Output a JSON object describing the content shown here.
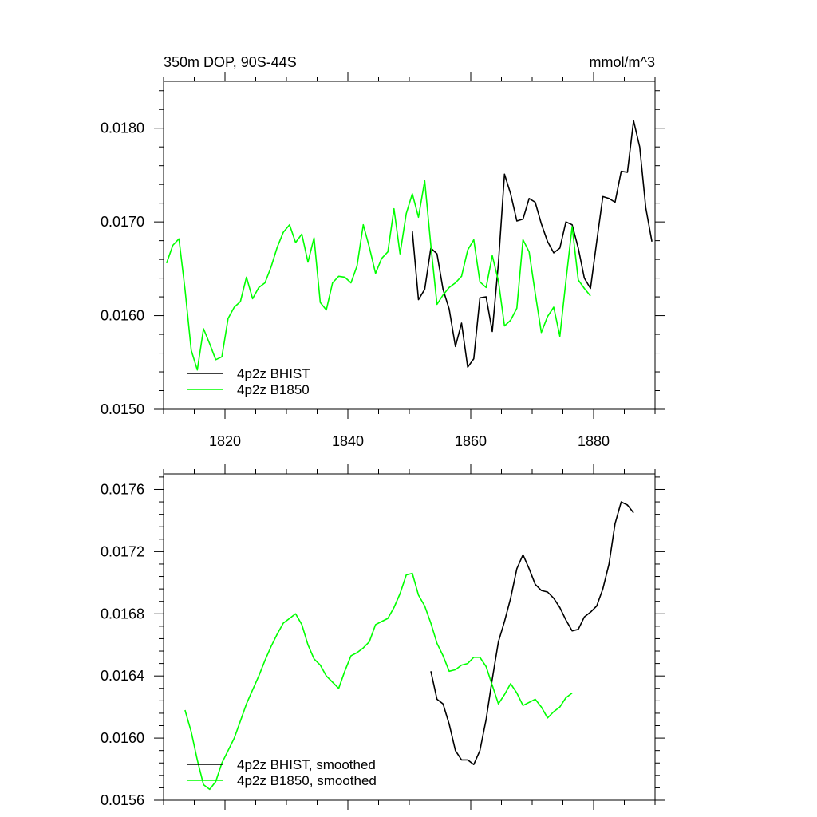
{
  "figure": {
    "title_left": "350m DOP, 90S-44S",
    "title_right": "mmol/m^3"
  },
  "colors": {
    "bhist": "#000000",
    "b1850": "#00ff00"
  },
  "chart_data": [
    {
      "type": "line",
      "title": "350m DOP, 90S-44S",
      "units": "mmol/m^3",
      "xlim": [
        1810,
        1890
      ],
      "ylim": [
        0.015,
        0.0185
      ],
      "xticks": [
        1820,
        1840,
        1860,
        1880
      ],
      "xtick_labels": [
        "1820",
        "1840",
        "1860",
        "1880"
      ],
      "yticks": [
        0.015,
        0.016,
        0.017,
        0.018
      ],
      "ytick_labels": [
        "0.0150",
        "0.0160",
        "0.0170",
        "0.0180"
      ],
      "grid": false,
      "legend_position": "bottom-left",
      "series": [
        {
          "name": "4p2z BHIST",
          "color": "#000000",
          "x": [
            1850.5,
            1851.5,
            1852.5,
            1853.5,
            1854.5,
            1855.5,
            1856.5,
            1857.5,
            1858.5,
            1859.5,
            1860.5,
            1861.5,
            1862.5,
            1863.5,
            1864.5,
            1865.5,
            1866.5,
            1867.5,
            1868.5,
            1869.5,
            1870.5,
            1871.5,
            1872.5,
            1873.5,
            1874.5,
            1875.5,
            1876.5,
            1877.5,
            1878.5,
            1879.5,
            1880.5,
            1881.5,
            1882.5,
            1883.5,
            1884.5,
            1885.5,
            1886.5,
            1887.5,
            1888.5,
            1889.5
          ],
          "y": [
            0.0169,
            0.01617,
            0.01628,
            0.01672,
            0.01666,
            0.01628,
            0.01607,
            0.01567,
            0.01592,
            0.01545,
            0.01554,
            0.01619,
            0.0162,
            0.01583,
            0.01656,
            0.01751,
            0.0173,
            0.01701,
            0.01703,
            0.01725,
            0.01721,
            0.01698,
            0.01679,
            0.01667,
            0.01672,
            0.017,
            0.01697,
            0.01672,
            0.0164,
            0.01629,
            0.01679,
            0.01727,
            0.01725,
            0.01721,
            0.01754,
            0.01753,
            0.01808,
            0.0178,
            0.01715,
            0.01679
          ]
        },
        {
          "name": "4p2z B1850",
          "color": "#00ff00",
          "x": [
            1810.5,
            1811.5,
            1812.5,
            1813.5,
            1814.5,
            1815.5,
            1816.5,
            1817.5,
            1818.5,
            1819.5,
            1820.5,
            1821.5,
            1822.5,
            1823.5,
            1824.5,
            1825.5,
            1826.5,
            1827.5,
            1828.5,
            1829.5,
            1830.5,
            1831.5,
            1832.5,
            1833.5,
            1834.5,
            1835.5,
            1836.5,
            1837.5,
            1838.5,
            1839.5,
            1840.5,
            1841.5,
            1842.5,
            1843.5,
            1844.5,
            1845.5,
            1846.5,
            1847.5,
            1848.5,
            1849.5,
            1850.5,
            1851.5,
            1852.5,
            1853.5,
            1854.5,
            1855.5,
            1856.5,
            1857.5,
            1858.5,
            1859.5,
            1860.5,
            1861.5,
            1862.5,
            1863.5,
            1864.5,
            1865.5,
            1866.5,
            1867.5,
            1868.5,
            1869.5,
            1870.5,
            1871.5,
            1872.5,
            1873.5,
            1874.5,
            1875.5,
            1876.5,
            1877.5,
            1878.5,
            1879.5
          ],
          "y": [
            0.01656,
            0.01675,
            0.01682,
            0.01628,
            0.01563,
            0.01542,
            0.01586,
            0.0157,
            0.01553,
            0.01556,
            0.01597,
            0.01609,
            0.01615,
            0.01641,
            0.01618,
            0.0163,
            0.01635,
            0.01652,
            0.01673,
            0.01689,
            0.01697,
            0.01678,
            0.01687,
            0.01657,
            0.01683,
            0.01614,
            0.01606,
            0.01635,
            0.01642,
            0.01641,
            0.01635,
            0.01653,
            0.01697,
            0.01673,
            0.01645,
            0.01661,
            0.01668,
            0.01714,
            0.01666,
            0.01709,
            0.0173,
            0.01705,
            0.01744,
            0.01675,
            0.01612,
            0.01622,
            0.0163,
            0.01635,
            0.01642,
            0.0167,
            0.01681,
            0.01636,
            0.0163,
            0.01664,
            0.01637,
            0.01589,
            0.01595,
            0.01608,
            0.01681,
            0.01668,
            0.01624,
            0.01582,
            0.01599,
            0.01609,
            0.01578,
            0.01637,
            0.01695,
            0.01638,
            0.01629,
            0.01621
          ]
        }
      ]
    },
    {
      "type": "line",
      "xlim": [
        1810,
        1890
      ],
      "ylim": [
        0.0156,
        0.0177
      ],
      "xticks": [
        1820,
        1840,
        1860,
        1880
      ],
      "yticks": [
        0.0156,
        0.016,
        0.0164,
        0.0168,
        0.0172,
        0.0176
      ],
      "ytick_labels": [
        "0.0156",
        "0.0160",
        "0.0164",
        "0.0168",
        "0.0172",
        "0.0176"
      ],
      "grid": false,
      "legend_position": "bottom-left",
      "series": [
        {
          "name": "4p2z BHIST, smoothed",
          "color": "#000000",
          "x": [
            1853.5,
            1854.5,
            1855.5,
            1856.5,
            1857.5,
            1858.5,
            1859.5,
            1860.5,
            1861.5,
            1862.5,
            1863.5,
            1864.5,
            1865.5,
            1866.5,
            1867.5,
            1868.5,
            1869.5,
            1870.5,
            1871.5,
            1872.5,
            1873.5,
            1874.5,
            1875.5,
            1876.5,
            1877.5,
            1878.5,
            1879.5,
            1880.5,
            1881.5,
            1882.5,
            1883.5,
            1884.5,
            1885.5,
            1886.5
          ],
          "y": [
            0.01643,
            0.01625,
            0.01622,
            0.01609,
            0.01592,
            0.01586,
            0.01586,
            0.01583,
            0.01592,
            0.01612,
            0.01638,
            0.01662,
            0.01675,
            0.0169,
            0.01709,
            0.01718,
            0.01709,
            0.01699,
            0.01695,
            0.01694,
            0.0169,
            0.01684,
            0.01676,
            0.01669,
            0.0167,
            0.01678,
            0.01681,
            0.01685,
            0.01696,
            0.01712,
            0.01738,
            0.01752,
            0.0175,
            0.01745
          ]
        },
        {
          "name": "4p2z B1850, smoothed",
          "color": "#00ff00",
          "x": [
            1813.5,
            1814.5,
            1815.5,
            1816.5,
            1817.5,
            1818.5,
            1819.5,
            1820.5,
            1821.5,
            1822.5,
            1823.5,
            1824.5,
            1825.5,
            1826.5,
            1827.5,
            1828.5,
            1829.5,
            1830.5,
            1831.5,
            1832.5,
            1833.5,
            1834.5,
            1835.5,
            1836.5,
            1837.5,
            1838.5,
            1839.5,
            1840.5,
            1841.5,
            1842.5,
            1843.5,
            1844.5,
            1845.5,
            1846.5,
            1847.5,
            1848.5,
            1849.5,
            1850.5,
            1851.5,
            1852.5,
            1853.5,
            1854.5,
            1855.5,
            1856.5,
            1857.5,
            1858.5,
            1859.5,
            1860.5,
            1861.5,
            1862.5,
            1863.5,
            1864.5,
            1865.5,
            1866.5,
            1867.5,
            1868.5,
            1869.5,
            1870.5,
            1871.5,
            1872.5,
            1873.5,
            1874.5,
            1875.5,
            1876.5
          ],
          "y": [
            0.01618,
            0.01604,
            0.01586,
            0.0157,
            0.01567,
            0.01572,
            0.01584,
            0.01592,
            0.016,
            0.01611,
            0.01622,
            0.01631,
            0.0164,
            0.0165,
            0.01659,
            0.01667,
            0.01674,
            0.01677,
            0.0168,
            0.01673,
            0.0166,
            0.01651,
            0.01647,
            0.0164,
            0.01636,
            0.01632,
            0.01643,
            0.01653,
            0.01655,
            0.01658,
            0.01662,
            0.01673,
            0.01675,
            0.01677,
            0.01684,
            0.01693,
            0.01705,
            0.01706,
            0.01692,
            0.01685,
            0.01674,
            0.01661,
            0.01653,
            0.01643,
            0.01644,
            0.01647,
            0.01648,
            0.01652,
            0.01652,
            0.01646,
            0.01634,
            0.01622,
            0.01628,
            0.01635,
            0.01629,
            0.01621,
            0.01623,
            0.01625,
            0.0162,
            0.01613,
            0.01617,
            0.0162,
            0.01626,
            0.01629
          ]
        }
      ]
    }
  ]
}
